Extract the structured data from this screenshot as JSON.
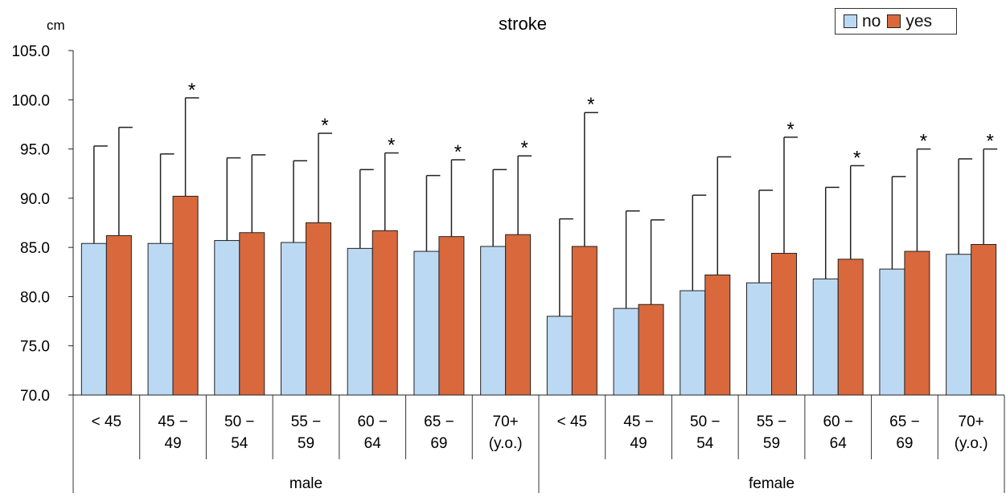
{
  "title": "stroke",
  "y_unit": "cm",
  "legend": [
    {
      "label": "no",
      "color": "#bcd9f4"
    },
    {
      "label": "yes",
      "color": "#d9683c"
    }
  ],
  "chart_data": {
    "type": "bar",
    "title": "stroke",
    "ylabel": "cm",
    "ylim": [
      70,
      105
    ],
    "yticks": [
      "70.0",
      "75.0",
      "80.0",
      "85.0",
      "90.0",
      "95.0",
      "100.0",
      "105.0"
    ],
    "groups": [
      {
        "label": "male",
        "categories": [
          [
            "< 45"
          ],
          [
            "45 −",
            "49"
          ],
          [
            "50 −",
            "54"
          ],
          [
            "55 −",
            "59"
          ],
          [
            "60 −",
            "64"
          ],
          [
            "65 −",
            "69"
          ],
          [
            "70+",
            "(y.o.)"
          ]
        ]
      },
      {
        "label": "female",
        "categories": [
          [
            "< 45"
          ],
          [
            "45 −",
            "49"
          ],
          [
            "50 −",
            "54"
          ],
          [
            "55 −",
            "59"
          ],
          [
            "60 −",
            "64"
          ],
          [
            "65 −",
            "69"
          ],
          [
            "70+",
            "(y.o.)"
          ]
        ]
      }
    ],
    "series": [
      {
        "name": "no",
        "color": "#bcd9f4",
        "values": [
          85.4,
          85.4,
          85.7,
          85.5,
          84.9,
          84.6,
          85.1,
          78.0,
          78.8,
          80.6,
          81.4,
          81.8,
          82.8,
          84.3
        ],
        "error_top": [
          95.3,
          94.5,
          94.1,
          93.8,
          92.9,
          92.3,
          92.9,
          87.9,
          88.7,
          90.3,
          90.8,
          91.1,
          92.2,
          94.0
        ],
        "significant": [
          false,
          false,
          false,
          false,
          false,
          false,
          false,
          false,
          false,
          false,
          false,
          false,
          false,
          false
        ]
      },
      {
        "name": "yes",
        "color": "#d9683c",
        "values": [
          86.2,
          90.2,
          86.5,
          87.5,
          86.7,
          86.1,
          86.3,
          85.1,
          79.2,
          82.2,
          84.4,
          83.8,
          84.6,
          85.3
        ],
        "error_top": [
          97.2,
          100.2,
          94.4,
          96.6,
          94.6,
          93.9,
          94.3,
          98.7,
          87.8,
          94.2,
          96.2,
          93.3,
          95.0,
          95.0
        ],
        "significant": [
          false,
          true,
          false,
          true,
          true,
          true,
          true,
          true,
          false,
          false,
          true,
          true,
          true,
          true
        ]
      }
    ],
    "significance_marker": "*",
    "grid": false,
    "legend_position": "top-right"
  }
}
